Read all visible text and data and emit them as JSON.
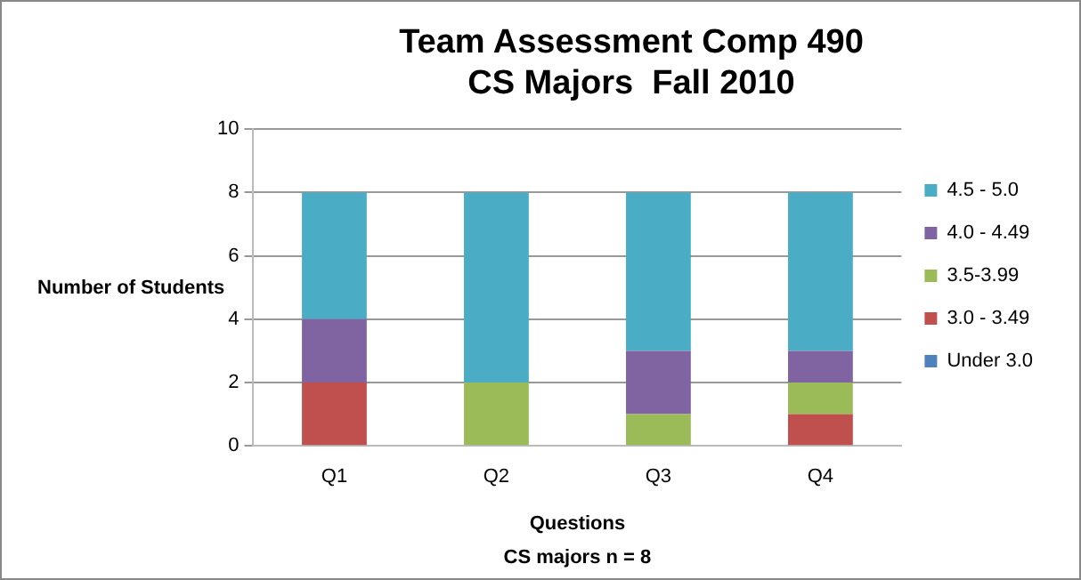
{
  "chart_data": {
    "type": "bar",
    "title": "Team Assessment Comp 490\nCS Majors  Fall 2010",
    "xlabel": "Questions",
    "ylabel": "Number of Students",
    "annotations": [
      "CS majors n = 8"
    ],
    "categories": [
      "Q1",
      "Q2",
      "Q3",
      "Q4"
    ],
    "stacked": true,
    "series": [
      {
        "name": "Under 3.0",
        "color": "#4f81bd",
        "values": [
          0,
          0,
          0,
          0
        ]
      },
      {
        "name": "3.0 - 3.49",
        "color": "#c0504d",
        "values": [
          2,
          0,
          0,
          1
        ]
      },
      {
        "name": "3.5-3.99",
        "color": "#9bbb59",
        "values": [
          0,
          2,
          1,
          1
        ]
      },
      {
        "name": "4.0 - 4.49",
        "color": "#8064a2",
        "values": [
          2,
          0,
          2,
          1
        ]
      },
      {
        "name": "4.5 - 5.0",
        "color": "#4bacc6",
        "values": [
          4,
          6,
          5,
          5
        ]
      }
    ],
    "ylim": [
      0,
      10
    ],
    "yticks": [
      0,
      2,
      4,
      6,
      8,
      10
    ],
    "grid": "y",
    "legend": "right"
  }
}
